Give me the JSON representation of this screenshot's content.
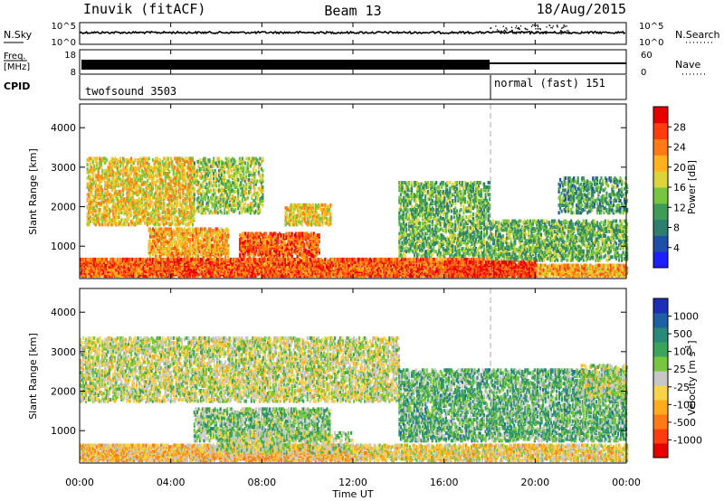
{
  "header": {
    "station": "Inuvik (fitACF)",
    "beam": "Beam 13",
    "date": "18/Aug/2015"
  },
  "nsky_panel": {
    "left_label": "N.Sky",
    "left_ticks": [
      "10^5",
      "10^0"
    ],
    "right_label": "N.Search",
    "right_ticks": [
      "10^5",
      "10^0"
    ]
  },
  "freq_panel": {
    "left_label_1": "Freq.",
    "left_label_2": "[MHz]",
    "left_ticks": [
      "18",
      "8"
    ],
    "right_label": "Nave",
    "right_ticks": [
      "60",
      "0"
    ]
  },
  "cpid_panel": {
    "label": "CPID",
    "modes": [
      {
        "name": "twofsound 3503",
        "start_hour": 0,
        "end_hour": 18
      },
      {
        "name": "normal (fast) 151",
        "start_hour": 18,
        "end_hour": 24
      }
    ]
  },
  "x_axis": {
    "label": "Time UT",
    "ticks": [
      "00:00",
      "04:00",
      "08:00",
      "12:00",
      "16:00",
      "20:00",
      "00:00"
    ],
    "range_hours": [
      0,
      24
    ]
  },
  "y_axis": {
    "label": "Slant Range [km]",
    "ticks": [
      "1000",
      "2000",
      "3000",
      "4000"
    ],
    "range": [
      180,
      4600
    ]
  },
  "colorbars": {
    "power": {
      "label": "Power [dB]",
      "ticks": [
        "4",
        "8",
        "12",
        "16",
        "20",
        "24",
        "28"
      ],
      "colors": [
        "#1e1eff",
        "#1f4fa6",
        "#2e7d6e",
        "#3e9b58",
        "#78c640",
        "#dcd43a",
        "#ffb21e",
        "#ff7a14",
        "#ff3c10",
        "#e60000"
      ]
    },
    "velocity": {
      "label_main": "Velocity [m s",
      "label_exp": "-1",
      "label_end": "]",
      "ticks": [
        "1000",
        "500",
        "100",
        "25",
        "-25",
        "-100",
        "-500",
        "-1000"
      ],
      "colors": [
        "#1c2fb5",
        "#1f5fa3",
        "#2a8a7a",
        "#3ca35a",
        "#78c640",
        "#c6c6c6",
        "#f5d44a",
        "#ffab1e",
        "#ff7a14",
        "#ff3c10",
        "#e60000"
      ]
    }
  },
  "chart_data": {
    "type": "heatmap",
    "title": "Inuvik (fitACF) Beam 13 18/Aug/2015",
    "xlabel": "Time UT",
    "ylabel": "Slant Range [km]",
    "xlim_hours": [
      0,
      24
    ],
    "ylim_km": [
      180,
      4600
    ],
    "mode_change_hour": 18,
    "panels": [
      {
        "name": "Power",
        "units": "dB",
        "color_range": [
          0,
          30
        ],
        "scatter_regions": [
          {
            "t0": 0,
            "t1": 18,
            "r0": 200,
            "r1": 650,
            "value": 24,
            "density": 0.85
          },
          {
            "t0": 18,
            "t1": 24,
            "r0": 200,
            "r1": 500,
            "value": 20,
            "density": 0.7
          },
          {
            "t0": 0.3,
            "t1": 5,
            "r0": 1500,
            "r1": 3200,
            "value": 18,
            "density": 0.45
          },
          {
            "t0": 3,
            "t1": 6.5,
            "r0": 700,
            "r1": 1400,
            "value": 20,
            "density": 0.55
          },
          {
            "t0": 7,
            "t1": 10.5,
            "r0": 700,
            "r1": 1300,
            "value": 24,
            "density": 0.6
          },
          {
            "t0": 9,
            "t1": 11,
            "r0": 1500,
            "r1": 2000,
            "value": 18,
            "density": 0.5
          },
          {
            "t0": 5,
            "t1": 8,
            "r0": 1800,
            "r1": 3200,
            "value": 14,
            "density": 0.35
          },
          {
            "t0": 14,
            "t1": 18,
            "r0": 700,
            "r1": 2600,
            "value": 12,
            "density": 0.4
          },
          {
            "t0": 18,
            "t1": 24,
            "r0": 600,
            "r1": 1600,
            "value": 12,
            "density": 0.45
          },
          {
            "t0": 21,
            "t1": 24,
            "r0": 1800,
            "r1": 2700,
            "value": 10,
            "density": 0.35
          },
          {
            "t0": 16,
            "t1": 20,
            "r0": 200,
            "r1": 550,
            "value": 26,
            "density": 0.8
          }
        ]
      },
      {
        "name": "Velocity",
        "units": "m s^-1",
        "color_range": [
          -1000,
          1000
        ],
        "scatter_regions": [
          {
            "t0": 0,
            "t1": 12,
            "r0": 200,
            "r1": 600,
            "value": -250,
            "density": 0.8
          },
          {
            "t0": 12,
            "t1": 24,
            "r0": 200,
            "r1": 600,
            "value": -150,
            "density": 0.6
          },
          {
            "t0": 0,
            "t1": 14,
            "r0": 1700,
            "r1": 3300,
            "value": 0,
            "density": 0.45
          },
          {
            "t0": 5,
            "t1": 11,
            "r0": 700,
            "r1": 1500,
            "value": 200,
            "density": 0.5
          },
          {
            "t0": 14,
            "t1": 24,
            "r0": 700,
            "r1": 2500,
            "value": 300,
            "density": 0.45
          },
          {
            "t0": 6,
            "t1": 12,
            "r0": 400,
            "r1": 900,
            "value": 60,
            "density": 0.35
          },
          {
            "t0": 22,
            "t1": 24,
            "r0": 1800,
            "r1": 2600,
            "value": 40,
            "density": 0.35
          }
        ]
      }
    ]
  }
}
